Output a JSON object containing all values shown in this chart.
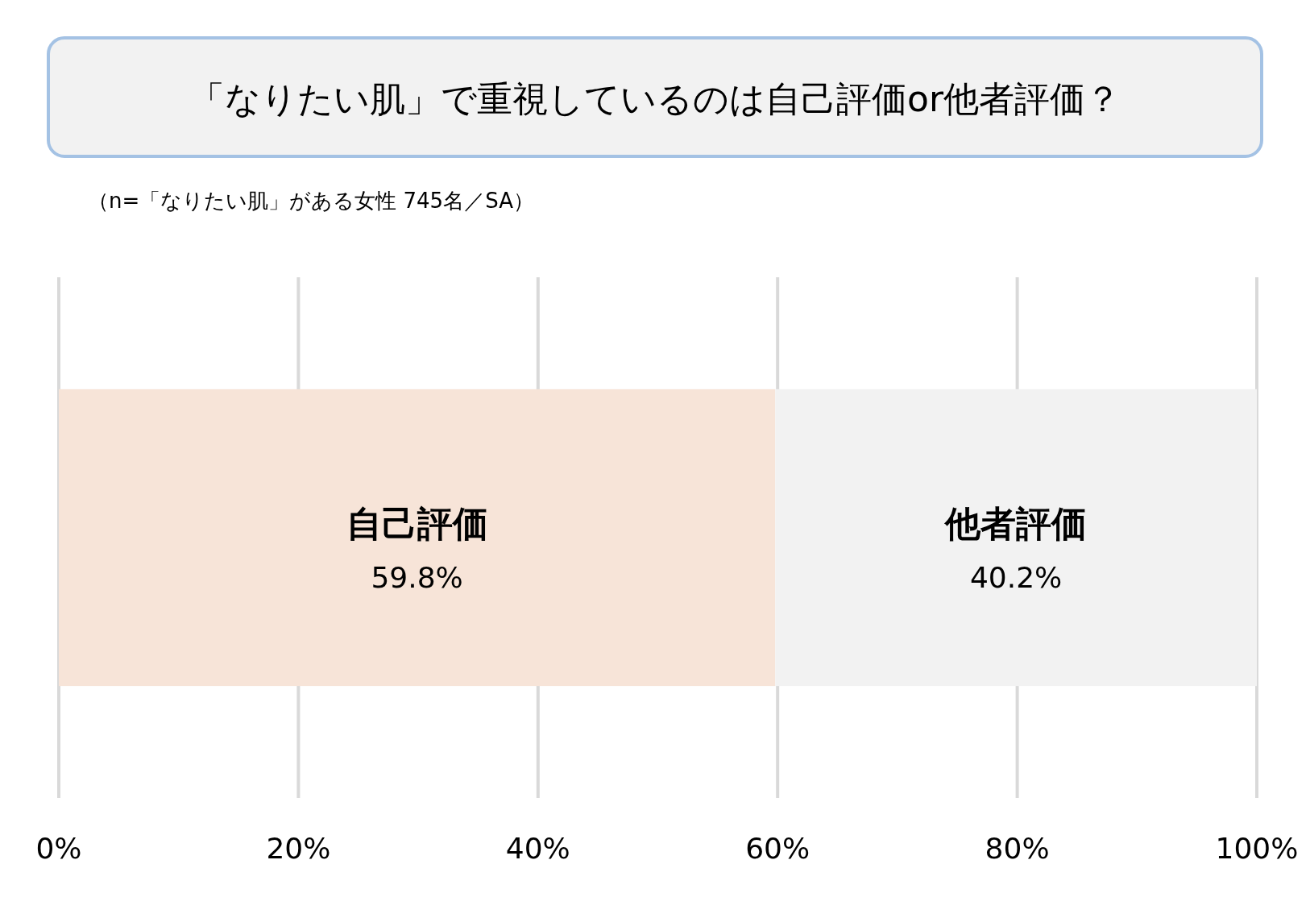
{
  "chart_data": {
    "type": "bar",
    "orientation": "horizontal",
    "stacked": true,
    "title": "「なりたい肌」で重視しているのは自己評価or他者評価？",
    "subtitle": "（n=「なりたい肌」がある女性 745名／SA）",
    "categories": [
      null
    ],
    "series": [
      {
        "name": "自己評価",
        "color": "#f7e4d8",
        "values": [
          59.8
        ],
        "value_labels": [
          "59.8%"
        ]
      },
      {
        "name": "他者評価",
        "color": "#f2f2f2",
        "values": [
          40.2
        ],
        "value_labels": [
          "40.2%"
        ]
      }
    ],
    "xlim": [
      0,
      100
    ],
    "xticks": [
      {
        "value": 0,
        "label": "0%"
      },
      {
        "value": 20,
        "label": "20%"
      },
      {
        "value": 40,
        "label": "40%"
      },
      {
        "value": 60,
        "label": "60%"
      },
      {
        "value": 80,
        "label": "80%"
      },
      {
        "value": 100,
        "label": "100%"
      }
    ],
    "grid": "x"
  }
}
